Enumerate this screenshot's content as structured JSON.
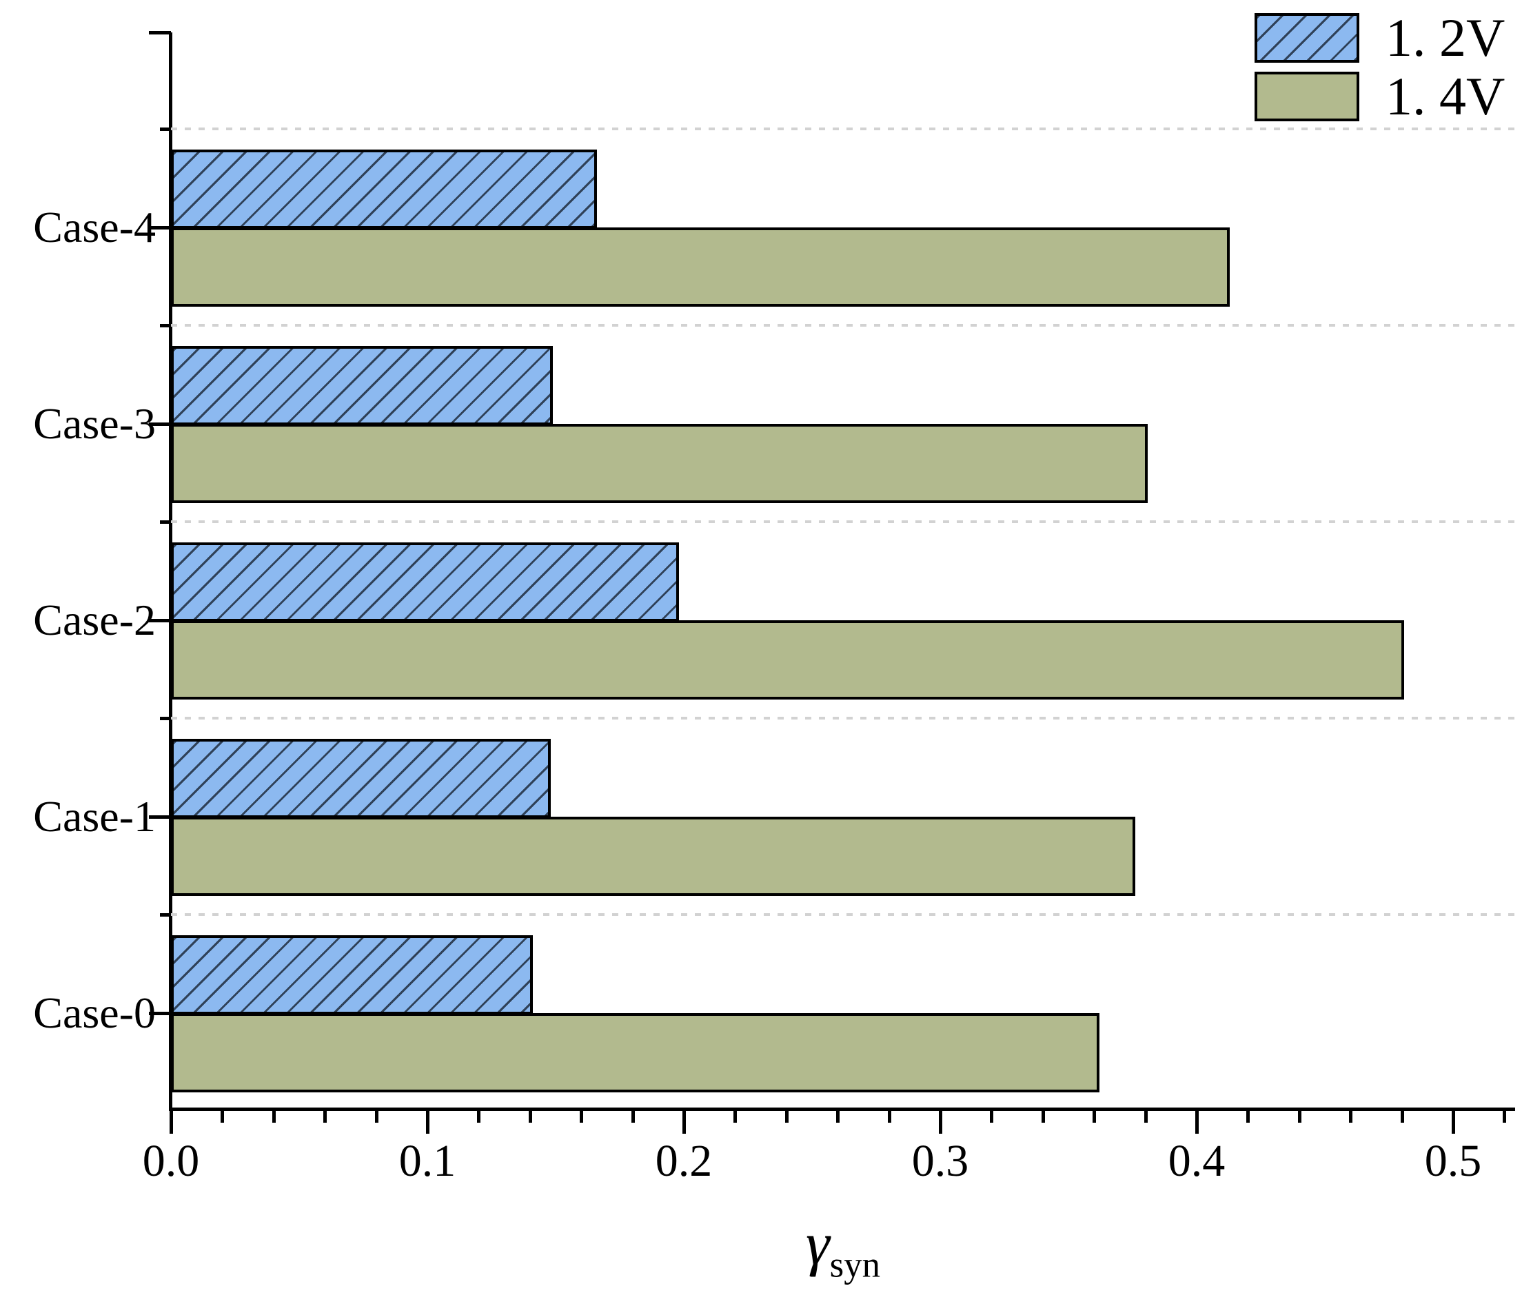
{
  "chart_data": {
    "type": "bar",
    "orientation": "horizontal",
    "title": "",
    "categories_top_to_bottom": [
      "Case-4",
      "Case-3",
      "Case-2",
      "Case-1",
      "Case-0"
    ],
    "series": [
      {
        "name": "1. 2V",
        "values": [
          0.166,
          0.149,
          0.198,
          0.148,
          0.141
        ],
        "color": "#8CB9F0",
        "hatch": "diagonal-forward-slash",
        "hatch_color": "#2F4158"
      },
      {
        "name": "1. 4V",
        "values": [
          0.413,
          0.381,
          0.481,
          0.376,
          0.362
        ],
        "color": "#B2BA8E",
        "hatch": "none",
        "hatch_color": null
      }
    ],
    "note": "series values aligned to categories_top_to_bottom",
    "xlabel_symbol": "γ",
    "xlabel_subscript": "syn",
    "ylabel": "",
    "xlim": [
      0,
      0.524
    ],
    "x_tick_labels": [
      "0.0",
      "0.1",
      "0.2",
      "0.3",
      "0.4",
      "0.5"
    ],
    "x_major_step": 0.1,
    "x_minor_step": 0.02,
    "grid": "horizontal dashed gridlines between category groups",
    "legend_position": "top-right"
  },
  "colors": {
    "background": "#FFFFFF",
    "axis": "#000000",
    "bar_border": "#000000",
    "gridline": "#D2D2D2",
    "text": "#000000",
    "series_1_2v_fill": "#8CB9F0",
    "series_1_2v_hatch": "#2F4158",
    "series_1_4v_fill": "#B2BA8E"
  }
}
